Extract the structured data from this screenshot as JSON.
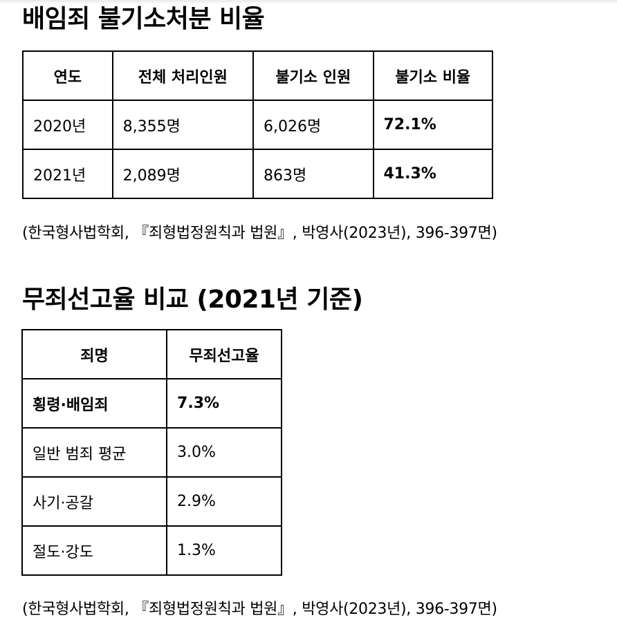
{
  "section1": {
    "title": "배임죄 불기소처분 비율",
    "headers": [
      "연도",
      "전체 처리인원",
      "불기소 인원",
      "불기소 비율"
    ],
    "rows": [
      [
        "2020년",
        "8,355명",
        "6,026명",
        "72.1%"
      ],
      [
        "2021년",
        "2,089명",
        "863명",
        "41.3%"
      ]
    ],
    "source": "(한국형사법학회, 『죄형법정원칙과 법원』, 박영사(2023년), 396-397면)"
  },
  "section2": {
    "title": "무죄선고율 비교 (2021년 기준)",
    "headers": [
      "죄명",
      "무죄선고율"
    ],
    "rows": [
      [
        "횡령·배임죄",
        "7.3%"
      ],
      [
        "일반 범죄 평균",
        "3.0%"
      ],
      [
        "사기·공갈",
        "2.9%"
      ],
      [
        "절도·강도",
        "1.3%"
      ]
    ],
    "source": "(한국형사법학회, 『죄형법정원칙과 법원』, 박영사(2023년), 396-397면)"
  }
}
